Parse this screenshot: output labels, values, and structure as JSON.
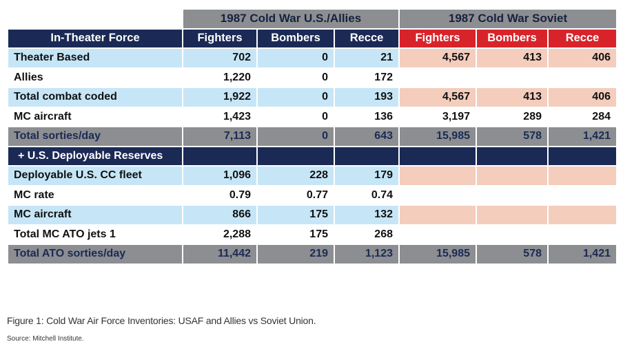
{
  "groups": {
    "us": "1987 Cold War U.S./Allies",
    "soviet": "1987 Cold War Soviet"
  },
  "headers": [
    "In-Theater Force",
    "Fighters",
    "Bombers",
    "Recce",
    "Fighters",
    "Bombers",
    "Recce"
  ],
  "rows": [
    {
      "label": "Theater Based",
      "us": [
        "702",
        "0",
        "21"
      ],
      "soviet": [
        "4,567",
        "413",
        "406"
      ]
    },
    {
      "label": "Allies",
      "us": [
        "1,220",
        "0",
        "172"
      ],
      "soviet": [
        "",
        "",
        ""
      ]
    },
    {
      "label": "Total combat coded",
      "us": [
        "1,922",
        "0",
        "193"
      ],
      "soviet": [
        "4,567",
        "413",
        "406"
      ]
    },
    {
      "label": "MC aircraft",
      "us": [
        "1,423",
        "0",
        "136"
      ],
      "soviet": [
        "3,197",
        "289",
        "284"
      ]
    },
    {
      "label": "Total sorties/day",
      "us": [
        "7,113",
        "0",
        "643"
      ],
      "soviet": [
        "15,985",
        "578",
        "1,421"
      ]
    },
    {
      "label": "+ U.S. Deployable Reserves",
      "us": [
        "",
        "",
        ""
      ],
      "soviet": [
        "",
        "",
        ""
      ]
    },
    {
      "label": "Deployable U.S. CC fleet",
      "us": [
        "1,096",
        "228",
        "179"
      ],
      "soviet": [
        "",
        "",
        ""
      ]
    },
    {
      "label": "MC rate",
      "us": [
        "0.79",
        "0.77",
        "0.74"
      ],
      "soviet": [
        "",
        "",
        ""
      ]
    },
    {
      "label": "MC aircraft",
      "us": [
        "866",
        "175",
        "132"
      ],
      "soviet": [
        "",
        "",
        ""
      ]
    },
    {
      "label": "Total MC ATO jets 1",
      "us": [
        "2,288",
        "175",
        "268"
      ],
      "soviet": [
        "",
        "",
        ""
      ]
    },
    {
      "label": "Total ATO sorties/day",
      "us": [
        "11,442",
        "219",
        "1,123"
      ],
      "soviet": [
        "15,985",
        "578",
        "1,421"
      ]
    }
  ],
  "caption": "Figure 1: Cold War Air Force Inventories: USAF and Allies vs Soviet Union.",
  "source": "Source: Mitchell Institute.",
  "colors": {
    "navy": "#1b2a55",
    "red": "#d8232a",
    "light_blue": "#c6e6f7",
    "salmon": "#f4cdbd",
    "gray": "#8c8e91"
  }
}
